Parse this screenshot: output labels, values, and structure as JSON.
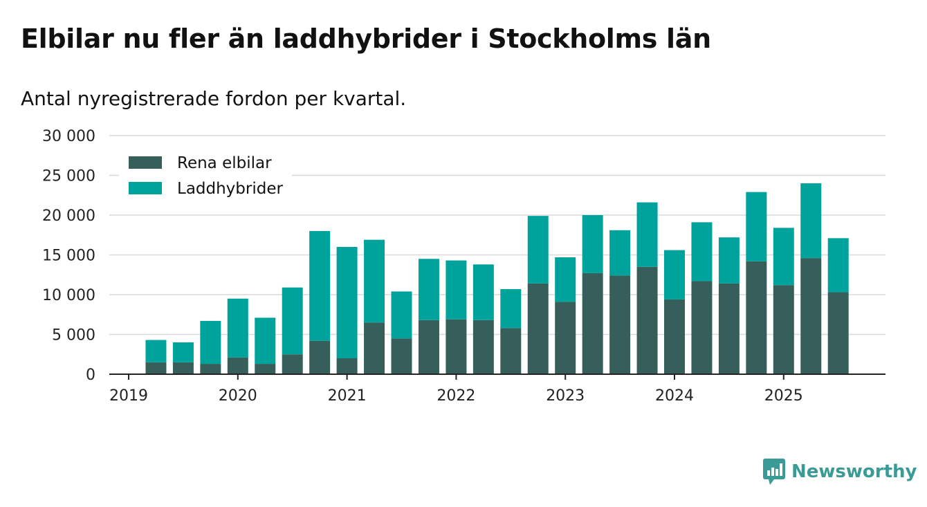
{
  "header": {
    "title": "Elbilar nu fler än laddhybrider i Stockholms län",
    "subtitle": "Antal nyregistrerade fordon per kvartal."
  },
  "brand": {
    "name": "Newsworthy",
    "icon": "newsworthy-logo-icon"
  },
  "colors": {
    "elbilar": "#365f5b",
    "laddhybrider": "#00a39c",
    "grid": "#d9d9d9",
    "axis": "#222222",
    "brand": "#3a9a95"
  },
  "chart_data": {
    "type": "bar",
    "stacked": true,
    "title": "Elbilar nu fler än laddhybrider i Stockholms län",
    "subtitle": "Antal nyregistrerade fordon per kvartal.",
    "xlabel": "",
    "ylabel": "",
    "ylim": [
      0,
      30000
    ],
    "yticks": [
      0,
      5000,
      10000,
      15000,
      20000,
      25000,
      30000
    ],
    "ytick_labels": [
      "0",
      "5 000",
      "10 000",
      "15 000",
      "20 000",
      "25 000",
      "30 000"
    ],
    "xtick_labels": [
      "2019",
      "2020",
      "2021",
      "2022",
      "2023",
      "2024",
      "2025"
    ],
    "categories": [
      "2019 Q2",
      "2019 Q3",
      "2019 Q4",
      "2020 Q1",
      "2020 Q2",
      "2020 Q3",
      "2020 Q4",
      "2021 Q1",
      "2021 Q2",
      "2021 Q3",
      "2021 Q4",
      "2022 Q1",
      "2022 Q2",
      "2022 Q3",
      "2022 Q4",
      "2023 Q1",
      "2023 Q2",
      "2023 Q3",
      "2023 Q4",
      "2024 Q1",
      "2024 Q2",
      "2024 Q3",
      "2024 Q4",
      "2025 Q1",
      "2025 Q2",
      "2025 Q3"
    ],
    "legend_position": "top-left",
    "grid": true,
    "series": [
      {
        "name": "Rena elbilar",
        "color": "#365f5b",
        "values": [
          1500,
          1500,
          1300,
          2100,
          1300,
          2500,
          4200,
          2000,
          6500,
          4500,
          6800,
          6900,
          6800,
          5800,
          11400,
          9100,
          12700,
          12400,
          13500,
          9400,
          11700,
          11400,
          14200,
          11200,
          14600,
          10300
        ]
      },
      {
        "name": "Laddhybrider",
        "color": "#00a39c",
        "values": [
          2800,
          2500,
          5400,
          7400,
          5800,
          8400,
          13800,
          14000,
          10400,
          5900,
          7700,
          7400,
          7000,
          4900,
          8500,
          5600,
          7300,
          5700,
          8100,
          6200,
          7400,
          5800,
          8700,
          7200,
          9400,
          6800
        ]
      }
    ]
  }
}
